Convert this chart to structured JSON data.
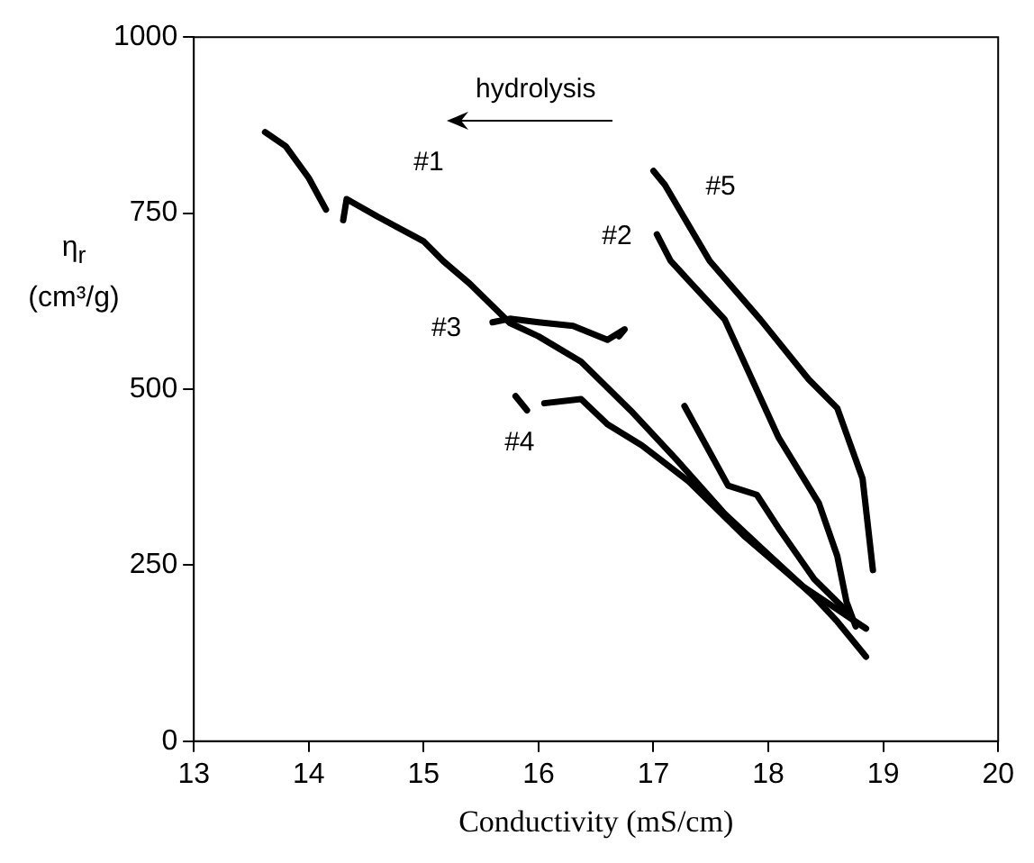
{
  "chart_data": {
    "type": "line",
    "xlabel": "Conductivity (mS/cm)",
    "ylabel": "η$_{r}$ (cm³/g)",
    "xlim": [
      13,
      20
    ],
    "xticks": [
      13,
      14,
      15,
      16,
      17,
      18,
      19,
      20
    ],
    "ylim": [
      0,
      1000
    ],
    "yticks": [
      0,
      250,
      500,
      750,
      1000
    ],
    "grid": false,
    "legend": false,
    "marker": "none",
    "line_style": "solid",
    "series": [
      {
        "color": "#000000",
        "x": [
          13.62,
          13.8,
          14.0,
          14.15,
          null,
          14.3,
          14.33,
          14.6,
          15.0,
          15.17,
          15.4,
          15.75,
          16.0,
          16.37,
          16.8,
          17.2,
          17.62,
          18.0,
          18.4,
          18.6,
          18.85
        ],
        "values": [
          865,
          845,
          800,
          755,
          null,
          740,
          770,
          745,
          710,
          682,
          650,
          594,
          575,
          539,
          470,
          400,
          323,
          265,
          205,
          170,
          120
        ]
      },
      {
        "color": "#000000",
        "x": [
          15.6,
          15.75,
          16.0,
          16.3,
          16.6,
          16.75,
          16.7
        ],
        "values": [
          595,
          600,
          595,
          590,
          570,
          585,
          575
        ]
      },
      {
        "color": "#000000",
        "x": [
          15.8,
          15.9,
          null,
          16.05,
          16.37,
          16.6,
          16.9,
          17.3,
          17.8,
          18.3,
          18.85
        ],
        "values": [
          490,
          470,
          null,
          480,
          486,
          450,
          420,
          370,
          290,
          220,
          160
        ]
      },
      {
        "color": "#000000",
        "x": [
          17.03,
          17.15,
          17.62,
          18.09,
          18.44,
          18.6,
          18.68,
          18.76
        ],
        "values": [
          720,
          682,
          599,
          431,
          338,
          263,
          198,
          163
        ]
      },
      {
        "color": "#000000",
        "x": [
          17.0,
          17.1,
          17.49,
          17.93,
          18.35,
          18.6,
          18.82,
          18.91
        ],
        "values": [
          810,
          790,
          682,
          599,
          514,
          473,
          373,
          243
        ]
      },
      {
        "color": "#000000",
        "x": [
          17.27,
          17.65,
          17.9,
          18.1,
          18.4,
          18.71
        ],
        "values": [
          476,
          363,
          350,
          300,
          230,
          180
        ]
      }
    ],
    "annotations": [
      "hydrolysis",
      "#1",
      "#2",
      "#3",
      "#4",
      "#5"
    ]
  }
}
